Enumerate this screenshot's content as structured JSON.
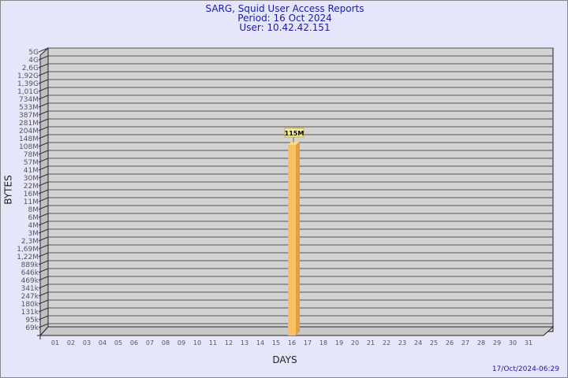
{
  "header": {
    "title": "SARG, Squid User Access Reports",
    "period": "Period: 16 Oct 2024",
    "user": "User: 10.42.42.151"
  },
  "footer": {
    "timestamp": "17/Oct/2024-06:29"
  },
  "chart_data": {
    "type": "bar",
    "xlabel": "DAYS",
    "ylabel": "BYTES",
    "y_scale": "log",
    "y_tick_labels": [
      "69k",
      "95k",
      "131k",
      "180k",
      "247k",
      "341k",
      "469k",
      "646k",
      "889k",
      "1,22M",
      "1,69M",
      "2,3M",
      "3M",
      "4M",
      "6M",
      "8M",
      "11M",
      "16M",
      "22M",
      "30M",
      "41M",
      "57M",
      "78M",
      "108M",
      "148M",
      "204M",
      "281M",
      "387M",
      "533M",
      "734M",
      "1,01G",
      "1,39G",
      "1,92G",
      "2,6G",
      "4G",
      "5G"
    ],
    "categories": [
      "01",
      "02",
      "03",
      "04",
      "05",
      "06",
      "07",
      "08",
      "09",
      "10",
      "11",
      "12",
      "13",
      "14",
      "15",
      "16",
      "17",
      "18",
      "19",
      "20",
      "21",
      "22",
      "23",
      "24",
      "25",
      "26",
      "27",
      "28",
      "29",
      "30",
      "31"
    ],
    "values": [
      null,
      null,
      null,
      null,
      null,
      null,
      null,
      null,
      null,
      null,
      null,
      null,
      null,
      null,
      null,
      115000000,
      null,
      null,
      null,
      null,
      null,
      null,
      null,
      null,
      null,
      null,
      null,
      null,
      null,
      null,
      null
    ],
    "data_labels": {
      "16": "115M"
    },
    "grid": true,
    "colors": {
      "bar": "#f8c060",
      "background": "#e6e6fa",
      "plot": "#d3d3d3",
      "title": "#1a1aa6"
    }
  }
}
